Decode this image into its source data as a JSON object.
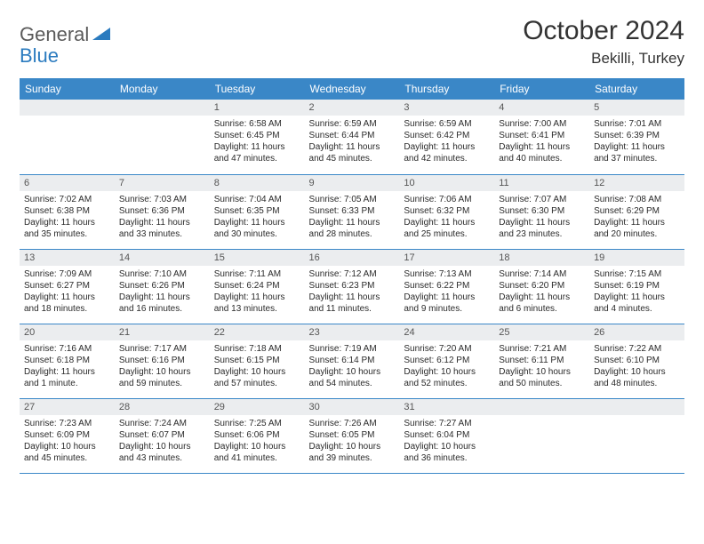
{
  "logo": {
    "text_gray": "General",
    "text_blue": "Blue"
  },
  "title": "October 2024",
  "location": "Bekilli, Turkey",
  "colors": {
    "header_bg": "#3a87c7",
    "header_fg": "#ffffff",
    "daynum_bg": "#ebedef",
    "border": "#3a87c7",
    "logo_gray": "#5a5a5a",
    "logo_blue": "#2b7bbf",
    "text": "#2a2a2a"
  },
  "day_labels": [
    "Sunday",
    "Monday",
    "Tuesday",
    "Wednesday",
    "Thursday",
    "Friday",
    "Saturday"
  ],
  "weeks": [
    [
      {
        "n": "",
        "lines": []
      },
      {
        "n": "",
        "lines": []
      },
      {
        "n": "1",
        "lines": [
          "Sunrise: 6:58 AM",
          "Sunset: 6:45 PM",
          "Daylight: 11 hours",
          "and 47 minutes."
        ]
      },
      {
        "n": "2",
        "lines": [
          "Sunrise: 6:59 AM",
          "Sunset: 6:44 PM",
          "Daylight: 11 hours",
          "and 45 minutes."
        ]
      },
      {
        "n": "3",
        "lines": [
          "Sunrise: 6:59 AM",
          "Sunset: 6:42 PM",
          "Daylight: 11 hours",
          "and 42 minutes."
        ]
      },
      {
        "n": "4",
        "lines": [
          "Sunrise: 7:00 AM",
          "Sunset: 6:41 PM",
          "Daylight: 11 hours",
          "and 40 minutes."
        ]
      },
      {
        "n": "5",
        "lines": [
          "Sunrise: 7:01 AM",
          "Sunset: 6:39 PM",
          "Daylight: 11 hours",
          "and 37 minutes."
        ]
      }
    ],
    [
      {
        "n": "6",
        "lines": [
          "Sunrise: 7:02 AM",
          "Sunset: 6:38 PM",
          "Daylight: 11 hours",
          "and 35 minutes."
        ]
      },
      {
        "n": "7",
        "lines": [
          "Sunrise: 7:03 AM",
          "Sunset: 6:36 PM",
          "Daylight: 11 hours",
          "and 33 minutes."
        ]
      },
      {
        "n": "8",
        "lines": [
          "Sunrise: 7:04 AM",
          "Sunset: 6:35 PM",
          "Daylight: 11 hours",
          "and 30 minutes."
        ]
      },
      {
        "n": "9",
        "lines": [
          "Sunrise: 7:05 AM",
          "Sunset: 6:33 PM",
          "Daylight: 11 hours",
          "and 28 minutes."
        ]
      },
      {
        "n": "10",
        "lines": [
          "Sunrise: 7:06 AM",
          "Sunset: 6:32 PM",
          "Daylight: 11 hours",
          "and 25 minutes."
        ]
      },
      {
        "n": "11",
        "lines": [
          "Sunrise: 7:07 AM",
          "Sunset: 6:30 PM",
          "Daylight: 11 hours",
          "and 23 minutes."
        ]
      },
      {
        "n": "12",
        "lines": [
          "Sunrise: 7:08 AM",
          "Sunset: 6:29 PM",
          "Daylight: 11 hours",
          "and 20 minutes."
        ]
      }
    ],
    [
      {
        "n": "13",
        "lines": [
          "Sunrise: 7:09 AM",
          "Sunset: 6:27 PM",
          "Daylight: 11 hours",
          "and 18 minutes."
        ]
      },
      {
        "n": "14",
        "lines": [
          "Sunrise: 7:10 AM",
          "Sunset: 6:26 PM",
          "Daylight: 11 hours",
          "and 16 minutes."
        ]
      },
      {
        "n": "15",
        "lines": [
          "Sunrise: 7:11 AM",
          "Sunset: 6:24 PM",
          "Daylight: 11 hours",
          "and 13 minutes."
        ]
      },
      {
        "n": "16",
        "lines": [
          "Sunrise: 7:12 AM",
          "Sunset: 6:23 PM",
          "Daylight: 11 hours",
          "and 11 minutes."
        ]
      },
      {
        "n": "17",
        "lines": [
          "Sunrise: 7:13 AM",
          "Sunset: 6:22 PM",
          "Daylight: 11 hours",
          "and 9 minutes."
        ]
      },
      {
        "n": "18",
        "lines": [
          "Sunrise: 7:14 AM",
          "Sunset: 6:20 PM",
          "Daylight: 11 hours",
          "and 6 minutes."
        ]
      },
      {
        "n": "19",
        "lines": [
          "Sunrise: 7:15 AM",
          "Sunset: 6:19 PM",
          "Daylight: 11 hours",
          "and 4 minutes."
        ]
      }
    ],
    [
      {
        "n": "20",
        "lines": [
          "Sunrise: 7:16 AM",
          "Sunset: 6:18 PM",
          "Daylight: 11 hours",
          "and 1 minute."
        ]
      },
      {
        "n": "21",
        "lines": [
          "Sunrise: 7:17 AM",
          "Sunset: 6:16 PM",
          "Daylight: 10 hours",
          "and 59 minutes."
        ]
      },
      {
        "n": "22",
        "lines": [
          "Sunrise: 7:18 AM",
          "Sunset: 6:15 PM",
          "Daylight: 10 hours",
          "and 57 minutes."
        ]
      },
      {
        "n": "23",
        "lines": [
          "Sunrise: 7:19 AM",
          "Sunset: 6:14 PM",
          "Daylight: 10 hours",
          "and 54 minutes."
        ]
      },
      {
        "n": "24",
        "lines": [
          "Sunrise: 7:20 AM",
          "Sunset: 6:12 PM",
          "Daylight: 10 hours",
          "and 52 minutes."
        ]
      },
      {
        "n": "25",
        "lines": [
          "Sunrise: 7:21 AM",
          "Sunset: 6:11 PM",
          "Daylight: 10 hours",
          "and 50 minutes."
        ]
      },
      {
        "n": "26",
        "lines": [
          "Sunrise: 7:22 AM",
          "Sunset: 6:10 PM",
          "Daylight: 10 hours",
          "and 48 minutes."
        ]
      }
    ],
    [
      {
        "n": "27",
        "lines": [
          "Sunrise: 7:23 AM",
          "Sunset: 6:09 PM",
          "Daylight: 10 hours",
          "and 45 minutes."
        ]
      },
      {
        "n": "28",
        "lines": [
          "Sunrise: 7:24 AM",
          "Sunset: 6:07 PM",
          "Daylight: 10 hours",
          "and 43 minutes."
        ]
      },
      {
        "n": "29",
        "lines": [
          "Sunrise: 7:25 AM",
          "Sunset: 6:06 PM",
          "Daylight: 10 hours",
          "and 41 minutes."
        ]
      },
      {
        "n": "30",
        "lines": [
          "Sunrise: 7:26 AM",
          "Sunset: 6:05 PM",
          "Daylight: 10 hours",
          "and 39 minutes."
        ]
      },
      {
        "n": "31",
        "lines": [
          "Sunrise: 7:27 AM",
          "Sunset: 6:04 PM",
          "Daylight: 10 hours",
          "and 36 minutes."
        ]
      },
      {
        "n": "",
        "lines": []
      },
      {
        "n": "",
        "lines": []
      }
    ]
  ]
}
